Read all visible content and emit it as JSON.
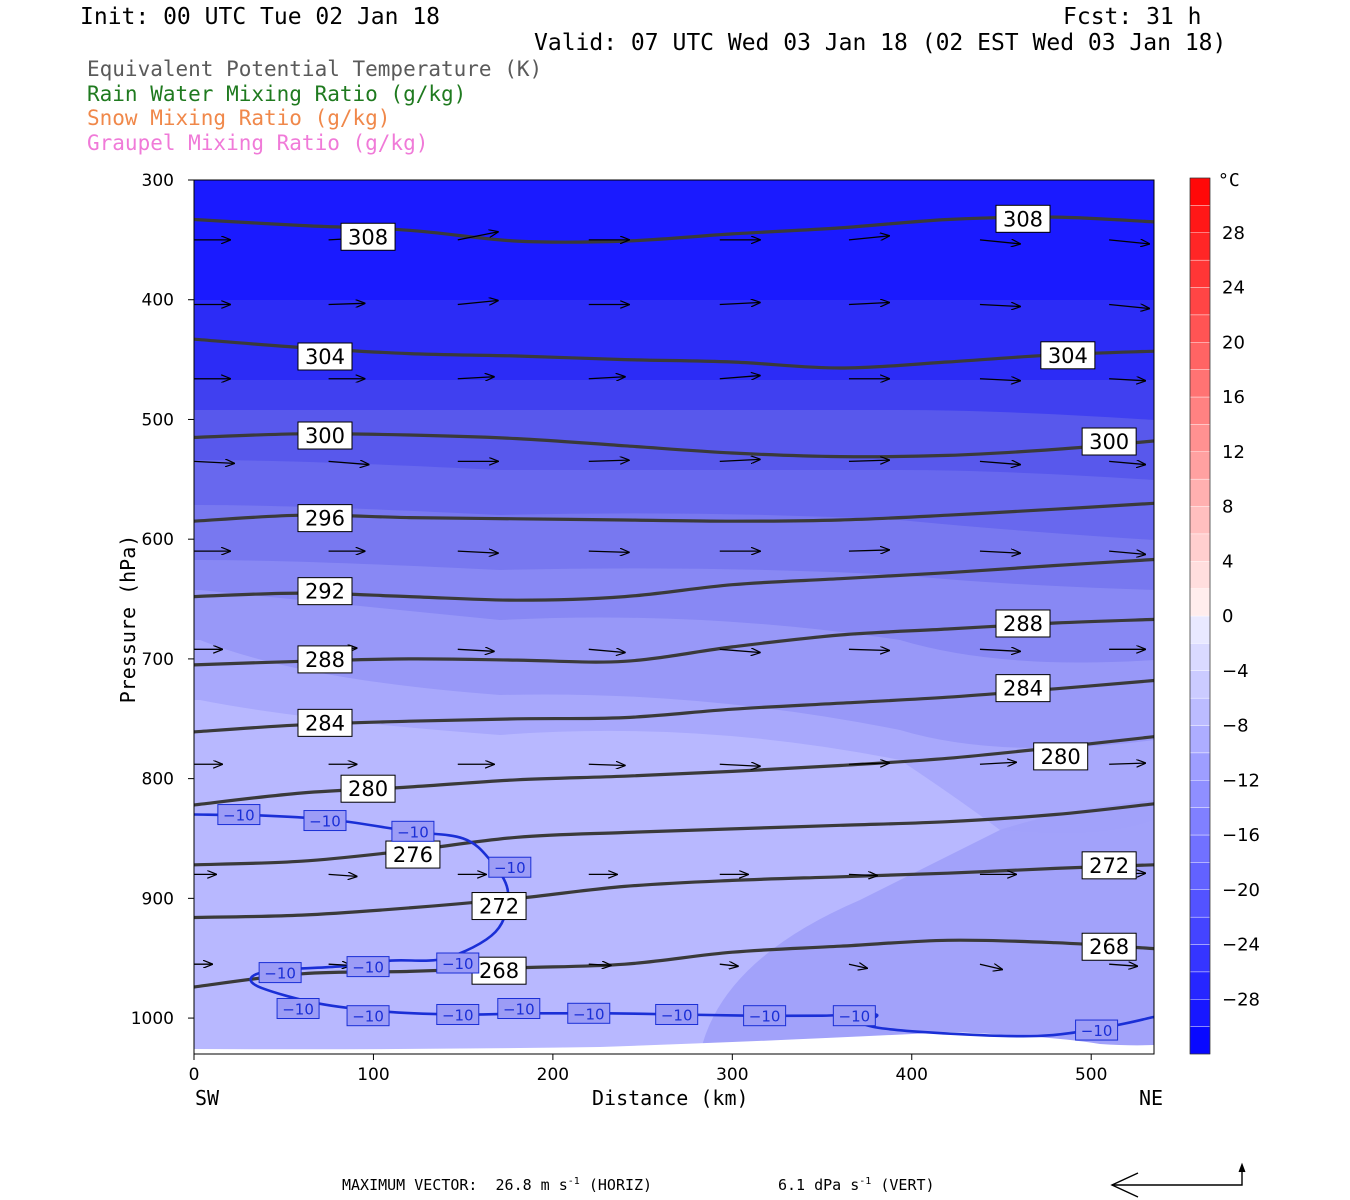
{
  "header": {
    "init": "Init: 00 UTC Tue 02 Jan 18",
    "fcst": "Fcst:   31 h",
    "valid": "Valid: 07 UTC Wed 03 Jan 18 (02 EST Wed 03 Jan 18)"
  },
  "legend": [
    {
      "label": "Equivalent Potential Temperature (K)",
      "color": "#5a5a5a"
    },
    {
      "label": "Rain Water Mixing Ratio (g/kg)",
      "color": "#1f7a1f"
    },
    {
      "label": "Snow Mixing Ratio (g/kg)",
      "color": "#f0884a"
    },
    {
      "label": "Graupel Mixing Ratio (g/kg)",
      "color": "#f07ad8"
    }
  ],
  "chart_data": {
    "type": "cross-section",
    "xlabel": "Distance (km)",
    "ylabel": "Pressure (hPa)",
    "xlim": [
      0,
      535
    ],
    "ylim": [
      300,
      1030
    ],
    "x_ticks": [
      0,
      100,
      200,
      300,
      400,
      500
    ],
    "y_ticks": [
      300,
      400,
      500,
      600,
      700,
      800,
      900,
      1000
    ],
    "x_end_labels": {
      "left": "SW",
      "right": "NE"
    },
    "colorbar": {
      "unit": "°C",
      "tick_labels": [
        28,
        24,
        20,
        16,
        12,
        8,
        4,
        0,
        -4,
        -8,
        -12,
        -16,
        -20,
        -24,
        -28
      ],
      "range": [
        -32,
        32
      ],
      "step": 2
    },
    "theta_e_contours": [
      {
        "value": 308,
        "points": [
          [
            0,
            333
          ],
          [
            60,
            338
          ],
          [
            120,
            342
          ],
          [
            180,
            351
          ],
          [
            240,
            351
          ],
          [
            300,
            345
          ],
          [
            360,
            340
          ],
          [
            420,
            333
          ],
          [
            480,
            331
          ],
          [
            535,
            335
          ]
        ],
        "labels": [
          [
            97,
            347
          ],
          [
            462,
            332
          ]
        ]
      },
      {
        "value": 304,
        "points": [
          [
            0,
            433
          ],
          [
            60,
            440
          ],
          [
            120,
            445
          ],
          [
            180,
            447
          ],
          [
            240,
            450
          ],
          [
            300,
            452
          ],
          [
            360,
            457
          ],
          [
            420,
            452
          ],
          [
            480,
            446
          ],
          [
            535,
            443
          ]
        ],
        "labels": [
          [
            73,
            447
          ],
          [
            487,
            446
          ]
        ]
      },
      {
        "value": 300,
        "points": [
          [
            0,
            515
          ],
          [
            60,
            512
          ],
          [
            120,
            513
          ],
          [
            180,
            516
          ],
          [
            240,
            522
          ],
          [
            300,
            528
          ],
          [
            360,
            531
          ],
          [
            420,
            530
          ],
          [
            480,
            525
          ],
          [
            535,
            518
          ]
        ],
        "labels": [
          [
            73,
            513
          ],
          [
            510,
            518
          ]
        ]
      },
      {
        "value": 296,
        "points": [
          [
            0,
            585
          ],
          [
            60,
            580
          ],
          [
            120,
            582
          ],
          [
            180,
            583
          ],
          [
            240,
            584
          ],
          [
            300,
            585
          ],
          [
            360,
            584
          ],
          [
            420,
            580
          ],
          [
            480,
            575
          ],
          [
            535,
            570
          ]
        ],
        "labels": [
          [
            73,
            582
          ]
        ]
      },
      {
        "value": 292,
        "points": [
          [
            0,
            648
          ],
          [
            60,
            645
          ],
          [
            120,
            648
          ],
          [
            180,
            651
          ],
          [
            240,
            648
          ],
          [
            300,
            638
          ],
          [
            360,
            633
          ],
          [
            420,
            628
          ],
          [
            480,
            622
          ],
          [
            535,
            617
          ]
        ],
        "labels": [
          [
            73,
            643
          ]
        ]
      },
      {
        "value": 288,
        "points": [
          [
            0,
            705
          ],
          [
            60,
            702
          ],
          [
            120,
            700
          ],
          [
            180,
            701
          ],
          [
            240,
            702
          ],
          [
            300,
            690
          ],
          [
            360,
            680
          ],
          [
            420,
            675
          ],
          [
            480,
            670
          ],
          [
            535,
            667
          ]
        ],
        "labels": [
          [
            73,
            700
          ],
          [
            462,
            670
          ]
        ]
      },
      {
        "value": 284,
        "points": [
          [
            0,
            761
          ],
          [
            60,
            755
          ],
          [
            120,
            752
          ],
          [
            180,
            750
          ],
          [
            240,
            749
          ],
          [
            300,
            742
          ],
          [
            360,
            737
          ],
          [
            420,
            732
          ],
          [
            480,
            725
          ],
          [
            535,
            718
          ]
        ],
        "labels": [
          [
            73,
            753
          ],
          [
            462,
            724
          ]
        ]
      },
      {
        "value": 280,
        "points": [
          [
            0,
            822
          ],
          [
            60,
            812
          ],
          [
            120,
            807
          ],
          [
            180,
            801
          ],
          [
            240,
            798
          ],
          [
            300,
            794
          ],
          [
            360,
            789
          ],
          [
            420,
            783
          ],
          [
            480,
            774
          ],
          [
            535,
            765
          ]
        ],
        "labels": [
          [
            97,
            808
          ],
          [
            483,
            781
          ]
        ]
      },
      {
        "value": 276,
        "points": [
          [
            0,
            872
          ],
          [
            60,
            869
          ],
          [
            120,
            860
          ],
          [
            180,
            849
          ],
          [
            240,
            845
          ],
          [
            300,
            842
          ],
          [
            360,
            839
          ],
          [
            420,
            836
          ],
          [
            480,
            830
          ],
          [
            535,
            821
          ]
        ],
        "labels": [
          [
            122,
            863
          ]
        ]
      },
      {
        "value": 272,
        "points": [
          [
            0,
            916
          ],
          [
            60,
            914
          ],
          [
            120,
            908
          ],
          [
            180,
            900
          ],
          [
            240,
            890
          ],
          [
            300,
            885
          ],
          [
            360,
            882
          ],
          [
            420,
            879
          ],
          [
            480,
            875
          ],
          [
            535,
            872
          ]
        ],
        "labels": [
          [
            170,
            906
          ],
          [
            510,
            872
          ]
        ]
      },
      {
        "value": 268,
        "points": [
          [
            0,
            974
          ],
          [
            60,
            963
          ],
          [
            120,
            961
          ],
          [
            180,
            958
          ],
          [
            240,
            955
          ],
          [
            300,
            945
          ],
          [
            360,
            940
          ],
          [
            420,
            935
          ],
          [
            480,
            937
          ],
          [
            535,
            942
          ]
        ],
        "labels": [
          [
            170,
            960
          ],
          [
            510,
            940
          ]
        ]
      }
    ],
    "temperature_contours": [
      {
        "value": -10,
        "points": [
          [
            0,
            830
          ],
          [
            40,
            831
          ],
          [
            80,
            835
          ],
          [
            120,
            844
          ],
          [
            150,
            850
          ],
          [
            165,
            868
          ],
          [
            175,
            895
          ],
          [
            168,
            928
          ],
          [
            140,
            950
          ],
          [
            110,
            952
          ],
          [
            80,
            957
          ],
          [
            45,
            960
          ],
          [
            32,
            966
          ],
          [
            38,
            975
          ],
          [
            70,
            988
          ],
          [
            110,
            995
          ],
          [
            150,
            997
          ],
          [
            190,
            996
          ],
          [
            230,
            996
          ],
          [
            270,
            997
          ],
          [
            310,
            998
          ],
          [
            350,
            998
          ],
          [
            380,
            997
          ],
          [
            375,
            1006
          ],
          [
            410,
            1012
          ],
          [
            470,
            1015
          ],
          [
            510,
            1007
          ],
          [
            535,
            999
          ]
        ],
        "labels": [
          [
            25,
            830
          ],
          [
            73,
            835
          ],
          [
            122,
            844
          ],
          [
            176,
            874
          ],
          [
            147,
            954
          ],
          [
            48,
            962
          ],
          [
            97,
            957
          ],
          [
            58,
            992
          ],
          [
            97,
            998
          ],
          [
            147,
            997
          ],
          [
            181,
            992
          ],
          [
            220,
            996
          ],
          [
            269,
            997
          ],
          [
            318,
            998
          ],
          [
            368,
            998
          ],
          [
            503,
            1010
          ]
        ]
      }
    ],
    "wind_barbs": [
      {
        "x": 0,
        "p": 350,
        "dx": 36,
        "dy": 0.0
      },
      {
        "x": 75,
        "p": 350,
        "dx": 36,
        "dy": -0.5
      },
      {
        "x": 147,
        "p": 350,
        "dx": 40,
        "dy": -2.0
      },
      {
        "x": 220,
        "p": 350,
        "dx": 40,
        "dy": 0.0
      },
      {
        "x": 293,
        "p": 350,
        "dx": 40,
        "dy": 0.0
      },
      {
        "x": 365,
        "p": 350,
        "dx": 40,
        "dy": -1.0
      },
      {
        "x": 438,
        "p": 350,
        "dx": 40,
        "dy": 1.0
      },
      {
        "x": 510,
        "p": 350,
        "dx": 40,
        "dy": 1.0
      },
      {
        "x": 0,
        "p": 404,
        "dx": 36,
        "dy": 0.0
      },
      {
        "x": 75,
        "p": 404,
        "dx": 36,
        "dy": -0.3
      },
      {
        "x": 147,
        "p": 404,
        "dx": 40,
        "dy": -1.0
      },
      {
        "x": 220,
        "p": 404,
        "dx": 40,
        "dy": 0.0
      },
      {
        "x": 293,
        "p": 404,
        "dx": 40,
        "dy": -0.5
      },
      {
        "x": 365,
        "p": 404,
        "dx": 40,
        "dy": -0.5
      },
      {
        "x": 438,
        "p": 404,
        "dx": 40,
        "dy": 0.5
      },
      {
        "x": 510,
        "p": 404,
        "dx": 40,
        "dy": 1.0
      },
      {
        "x": 0,
        "p": 466,
        "dx": 36,
        "dy": 0.0
      },
      {
        "x": 75,
        "p": 466,
        "dx": 36,
        "dy": 0.0
      },
      {
        "x": 147,
        "p": 466,
        "dx": 36,
        "dy": -0.5
      },
      {
        "x": 220,
        "p": 466,
        "dx": 36,
        "dy": -0.5
      },
      {
        "x": 293,
        "p": 466,
        "dx": 40,
        "dy": -0.8
      },
      {
        "x": 365,
        "p": 466,
        "dx": 40,
        "dy": 0.0
      },
      {
        "x": 438,
        "p": 466,
        "dx": 40,
        "dy": 0.5
      },
      {
        "x": 510,
        "p": 466,
        "dx": 36,
        "dy": 0.5
      },
      {
        "x": 0,
        "p": 535,
        "dx": 40,
        "dy": 0.5
      },
      {
        "x": 75,
        "p": 535,
        "dx": 40,
        "dy": 0.8
      },
      {
        "x": 147,
        "p": 535,
        "dx": 40,
        "dy": 0.0
      },
      {
        "x": 220,
        "p": 535,
        "dx": 40,
        "dy": -0.3
      },
      {
        "x": 293,
        "p": 535,
        "dx": 40,
        "dy": -0.5
      },
      {
        "x": 365,
        "p": 535,
        "dx": 40,
        "dy": -0.3
      },
      {
        "x": 438,
        "p": 535,
        "dx": 40,
        "dy": 0.8
      },
      {
        "x": 510,
        "p": 535,
        "dx": 36,
        "dy": 0.8
      },
      {
        "x": 0,
        "p": 610,
        "dx": 36,
        "dy": 0.0
      },
      {
        "x": 75,
        "p": 610,
        "dx": 36,
        "dy": 0.0
      },
      {
        "x": 147,
        "p": 610,
        "dx": 40,
        "dy": 0.5
      },
      {
        "x": 220,
        "p": 610,
        "dx": 40,
        "dy": 0.3
      },
      {
        "x": 293,
        "p": 610,
        "dx": 40,
        "dy": 0.0
      },
      {
        "x": 365,
        "p": 610,
        "dx": 40,
        "dy": -0.3
      },
      {
        "x": 438,
        "p": 610,
        "dx": 40,
        "dy": 0.5
      },
      {
        "x": 510,
        "p": 610,
        "dx": 36,
        "dy": 0.8
      },
      {
        "x": 0,
        "p": 692,
        "dx": 28,
        "dy": 0.0
      },
      {
        "x": 75,
        "p": 692,
        "dx": 28,
        "dy": -0.3
      },
      {
        "x": 147,
        "p": 692,
        "dx": 36,
        "dy": 0.5
      },
      {
        "x": 220,
        "p": 692,
        "dx": 36,
        "dy": 0.8
      },
      {
        "x": 293,
        "p": 692,
        "dx": 40,
        "dy": 0.8
      },
      {
        "x": 365,
        "p": 692,
        "dx": 40,
        "dy": 0.3
      },
      {
        "x": 438,
        "p": 692,
        "dx": 40,
        "dy": 0.5
      },
      {
        "x": 510,
        "p": 692,
        "dx": 36,
        "dy": 0.0
      },
      {
        "x": 0,
        "p": 788,
        "dx": 28,
        "dy": 0.0
      },
      {
        "x": 75,
        "p": 788,
        "dx": 28,
        "dy": 0.0
      },
      {
        "x": 147,
        "p": 788,
        "dx": 36,
        "dy": 0.0
      },
      {
        "x": 220,
        "p": 788,
        "dx": 36,
        "dy": 0.3
      },
      {
        "x": 293,
        "p": 788,
        "dx": 40,
        "dy": 0.5
      },
      {
        "x": 365,
        "p": 788,
        "dx": 40,
        "dy": -0.3
      },
      {
        "x": 438,
        "p": 788,
        "dx": 36,
        "dy": -0.5
      },
      {
        "x": 510,
        "p": 788,
        "dx": 36,
        "dy": -0.3
      },
      {
        "x": 0,
        "p": 880,
        "dx": 22,
        "dy": 0.0
      },
      {
        "x": 75,
        "p": 880,
        "dx": 28,
        "dy": 0.5
      },
      {
        "x": 147,
        "p": 880,
        "dx": 28,
        "dy": 0.0
      },
      {
        "x": 220,
        "p": 880,
        "dx": 28,
        "dy": 0.0
      },
      {
        "x": 293,
        "p": 880,
        "dx": 28,
        "dy": 0.0
      },
      {
        "x": 365,
        "p": 880,
        "dx": 28,
        "dy": 0.3
      },
      {
        "x": 438,
        "p": 880,
        "dx": 36,
        "dy": 0.0
      },
      {
        "x": 510,
        "p": 880,
        "dx": 36,
        "dy": -0.3
      },
      {
        "x": 0,
        "p": 955,
        "dx": 18,
        "dy": 0.0
      },
      {
        "x": 75,
        "p": 955,
        "dx": 22,
        "dy": 0.3
      },
      {
        "x": 147,
        "p": 955,
        "dx": 22,
        "dy": 0.0
      },
      {
        "x": 220,
        "p": 955,
        "dx": 22,
        "dy": 0.3
      },
      {
        "x": 293,
        "p": 955,
        "dx": 18,
        "dy": 0.5
      },
      {
        "x": 365,
        "p": 955,
        "dx": 18,
        "dy": 1.0
      },
      {
        "x": 438,
        "p": 955,
        "dx": 22,
        "dy": 1.3
      },
      {
        "x": 510,
        "p": 955,
        "dx": 28,
        "dy": 0.5
      }
    ]
  },
  "footer": {
    "max_vector_label": "MAXIMUM VECTOR:",
    "horiz_value": "26.8 m s",
    "horiz_exp": "-1",
    "horiz_tag": "(HORIZ)",
    "vert_value": "6.1 dPa s",
    "vert_exp": "-1",
    "vert_tag": "(VERT)"
  }
}
